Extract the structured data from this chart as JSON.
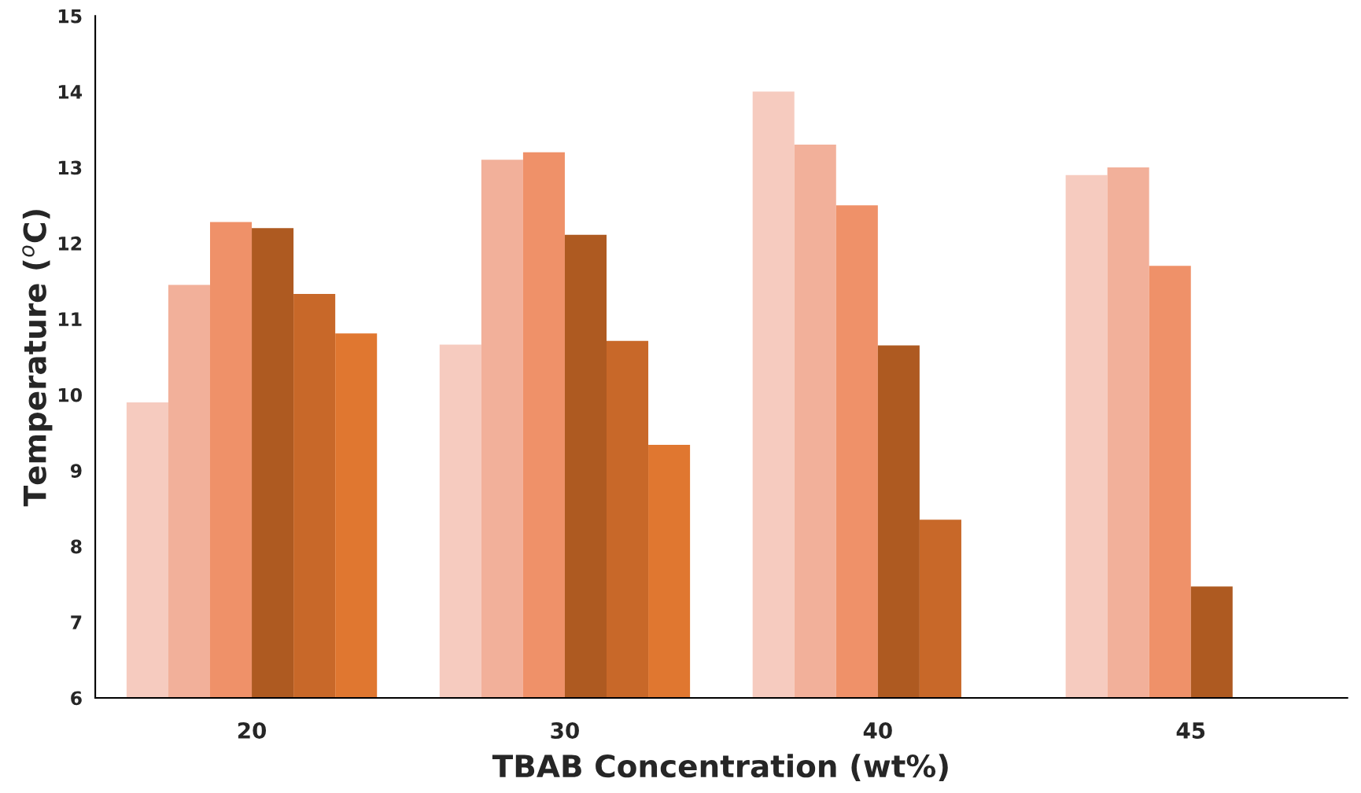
{
  "chart_data": {
    "type": "bar",
    "xlabel": "TBAB Concentration (wt%)",
    "ylabel": "Temperature ($^{o}$C)",
    "categories": [
      "20",
      "30",
      "40",
      "45"
    ],
    "series": [
      {
        "color": "#f6cbbf",
        "values": [
          9.9,
          10.66,
          14.0,
          12.9
        ]
      },
      {
        "color": "#f2b09a",
        "values": [
          11.45,
          13.1,
          13.3,
          13.0
        ]
      },
      {
        "color": "#ef9169",
        "values": [
          12.28,
          13.2,
          12.5,
          11.7
        ]
      },
      {
        "color": "#ae5a21",
        "values": [
          12.2,
          12.11,
          10.65,
          7.47
        ]
      },
      {
        "color": "#c86829",
        "values": [
          11.33,
          10.71,
          8.35,
          null
        ]
      },
      {
        "color": "#e07730",
        "values": [
          10.81,
          9.34,
          null,
          null
        ]
      }
    ],
    "ylim": [
      6,
      15
    ],
    "yticks": [
      6,
      7,
      8,
      9,
      10,
      11,
      12,
      13,
      14,
      15
    ],
    "grid": false,
    "legend": false
  }
}
